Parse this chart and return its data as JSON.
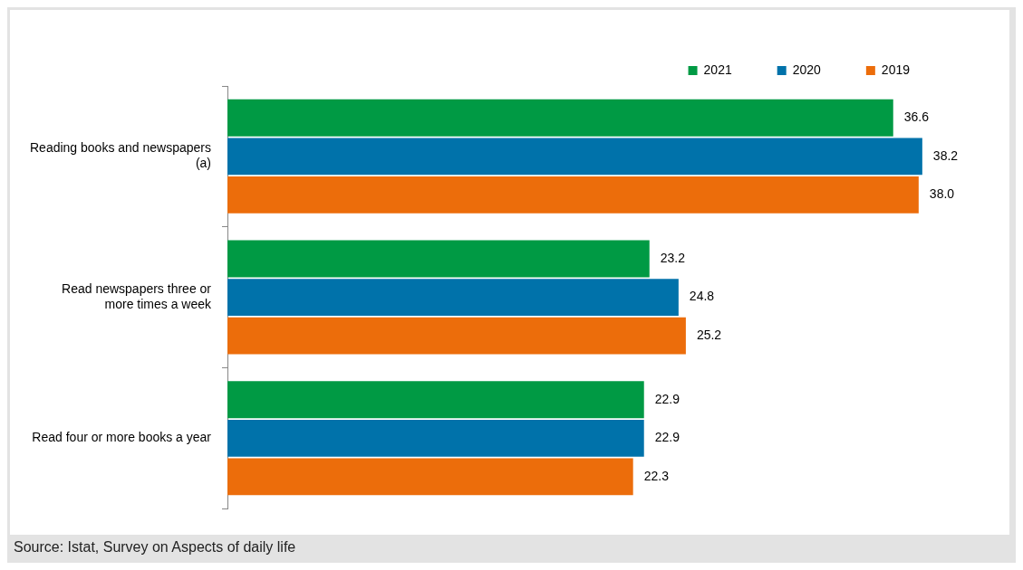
{
  "chart_data": {
    "type": "bar",
    "orientation": "horizontal",
    "categories": [
      "Reading books and newspapers\n(a)",
      "Read newspapers three or\nmore times a week",
      "Read four or more books a year"
    ],
    "series": [
      {
        "name": "2021",
        "color": "#009a44",
        "values": [
          36.6,
          23.2,
          22.9
        ],
        "value_labels": [
          "36.6",
          "23.2",
          "22.9"
        ]
      },
      {
        "name": "2020",
        "color": "#0072aa",
        "values": [
          38.2,
          24.8,
          22.9
        ],
        "value_labels": [
          "38.2",
          "24.8",
          "22.9"
        ]
      },
      {
        "name": "2019",
        "color": "#ec6d0b",
        "values": [
          38.0,
          25.2,
          22.3
        ],
        "value_labels": [
          "38.0",
          "25.2",
          "22.3"
        ]
      }
    ],
    "tick_labels": "y",
    "grid": false,
    "legend": "top right",
    "annotations": [
      "Source: Istat, Survey on Aspects of daily life"
    ]
  }
}
